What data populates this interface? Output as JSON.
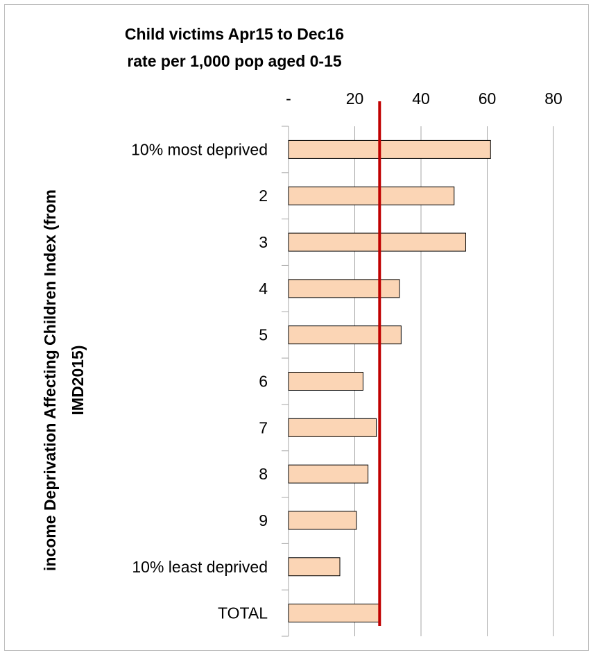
{
  "chart_data": {
    "type": "bar",
    "orientation": "horizontal",
    "title_lines": [
      "Child victims Apr15 to Dec16",
      "rate per 1,000 pop aged 0-15"
    ],
    "ylabel_lines": [
      "income Deprivation Affecting Children Index (from",
      "IMD2015)"
    ],
    "xlabel": "",
    "x_ticks": [
      {
        "value": 0,
        "label": "-"
      },
      {
        "value": 20,
        "label": "20"
      },
      {
        "value": 40,
        "label": "40"
      },
      {
        "value": 60,
        "label": "60"
      },
      {
        "value": 80,
        "label": "80"
      }
    ],
    "xlim": [
      0,
      80
    ],
    "axis_position": "top",
    "grid": true,
    "categories": [
      "10% most deprived",
      "2",
      "3",
      "4",
      "5",
      "6",
      "7",
      "8",
      "9",
      "10% least deprived",
      "TOTAL"
    ],
    "values": [
      61,
      50,
      53.5,
      33.5,
      34,
      22.5,
      26.5,
      24,
      20.5,
      15.5,
      27.5
    ],
    "reference_line": {
      "value": 27.5
    },
    "colors": {
      "bar_fill": "#fbd5b5",
      "bar_stroke": "#000000",
      "reference_line": "#c00000",
      "grid": "#a6a6a6",
      "axis": "#a6a6a6"
    }
  }
}
